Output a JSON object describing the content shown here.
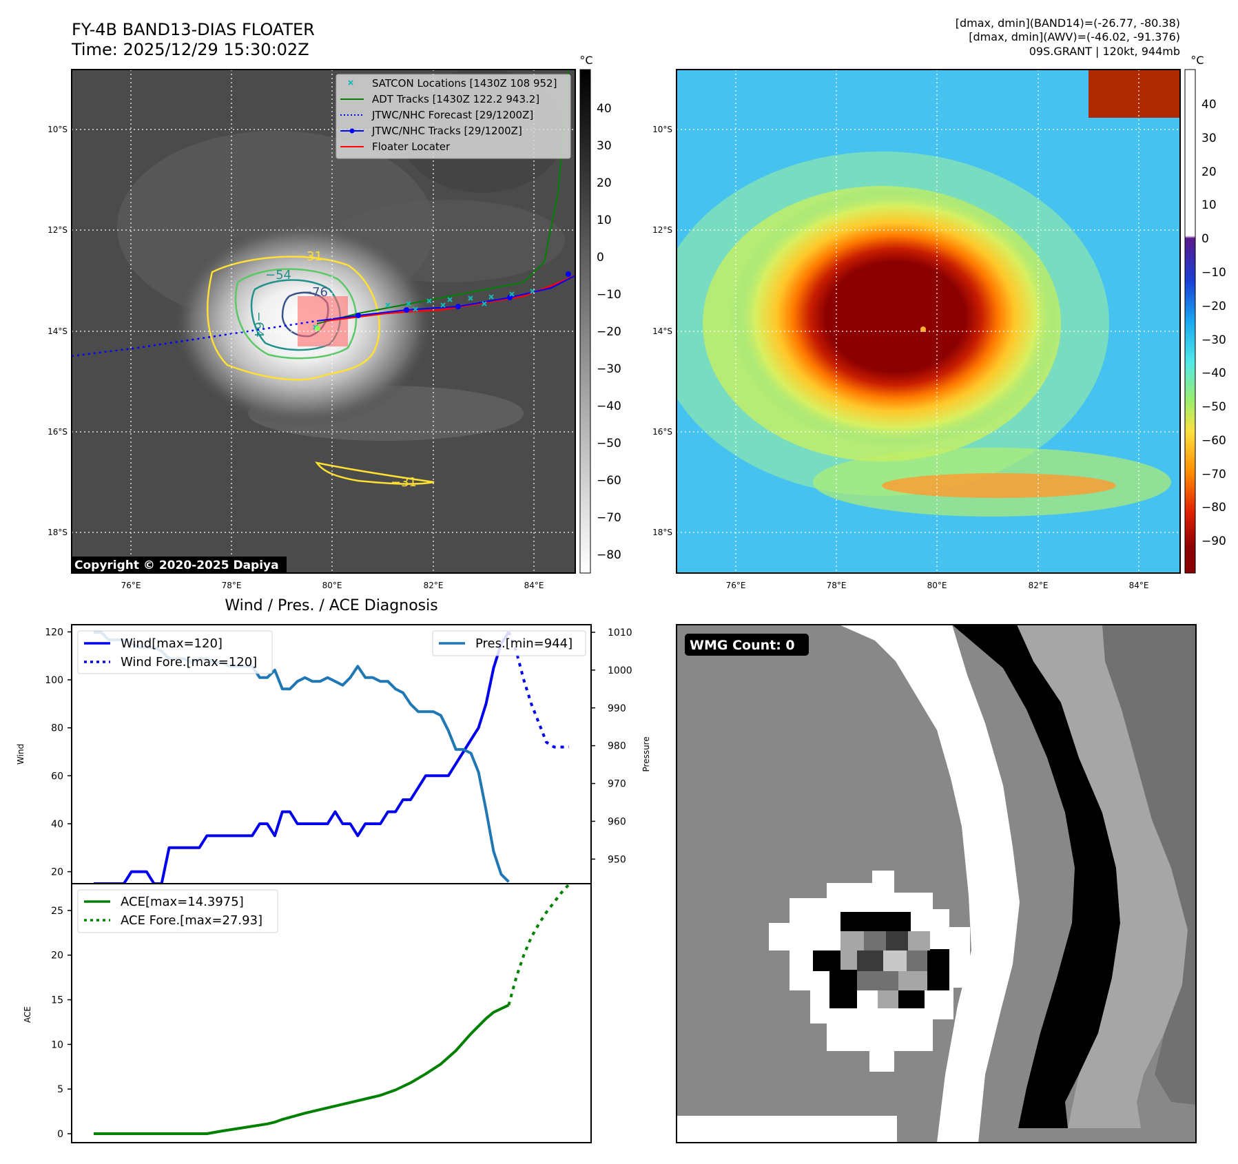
{
  "header": {
    "title": "FY-4B BAND13-DIAS FLOATER",
    "time": "Time: 2025/12/29 15:30:02Z",
    "info_line1": "[dmax, dmin](BAND14)=(-26.77, -80.38)",
    "info_line2": "[dmax, dmin](AWV)=(-46.02, -91.376)",
    "info_line3": "09S.GRANT | 120kt, 944mb"
  },
  "map": {
    "lon_ticks": [
      "76°E",
      "78°E",
      "80°E",
      "82°E",
      "84°E"
    ],
    "lat_ticks": [
      "10°S",
      "12°S",
      "14°S",
      "16°S",
      "18°S"
    ],
    "copyright": "Copyright © 2020-2025 Dapiya",
    "contour_labels": [
      "−31",
      "−54",
      "−76",
      "−64",
      "−31"
    ],
    "legend": [
      {
        "label": "SATCON Locations [1430Z 108 952]",
        "color": "#18b8b8",
        "style": "x"
      },
      {
        "label": "ADT Tracks [1430Z 122.2 943.2]",
        "color": "#008000",
        "style": "line"
      },
      {
        "label": "JTWC/NHC Forecast [29/1200Z]",
        "color": "#0000ff",
        "style": "dotted"
      },
      {
        "label": "JTWC/NHC Tracks [29/1200Z]",
        "color": "#0000ff",
        "style": "marker"
      },
      {
        "label": "Floater Locater",
        "color": "#ff0000",
        "style": "line"
      }
    ]
  },
  "colorbar_gray": {
    "unit": "°C",
    "ticks": [
      "40",
      "30",
      "20",
      "10",
      "0",
      "−10",
      "−20",
      "−30",
      "−40",
      "−50",
      "−60",
      "−70",
      "−80"
    ]
  },
  "colorbar_color": {
    "unit": "°C",
    "ticks": [
      "40",
      "30",
      "20",
      "10",
      "0",
      "−10",
      "−20",
      "−30",
      "−40",
      "−50",
      "−60",
      "−70",
      "−80",
      "−90"
    ]
  },
  "wmg": {
    "label": "WMG Count: 0"
  },
  "chart_data": [
    {
      "type": "line",
      "title": "Wind / Pres. / ACE Diagnosis",
      "ylabel": "Wind",
      "ylabel_right": "Pressure",
      "ylim": [
        15,
        123
      ],
      "ylim_right": [
        943.5,
        1012
      ],
      "xlim": [
        0,
        63
      ],
      "wind_ticks": [
        20,
        40,
        60,
        80,
        100,
        120
      ],
      "pres_ticks": [
        950,
        960,
        970,
        980,
        990,
        1000,
        1010
      ],
      "legend_wind": "Wind[max=120]",
      "legend_wind_fore": "Wind Fore.[max=120]",
      "legend_pres": "Pres.[min=944]",
      "series": [
        {
          "name": "Wind",
          "color": "#0000ee",
          "style": "solid",
          "axis": "left",
          "x": [
            0,
            1,
            2,
            3,
            4,
            5,
            6,
            7,
            8,
            9,
            10,
            11,
            12,
            13,
            14,
            15,
            16,
            17,
            18,
            19,
            20,
            21,
            22,
            23,
            24,
            25,
            26,
            27,
            28,
            29,
            30,
            31,
            32,
            33,
            34,
            35,
            36,
            37,
            38,
            39,
            40,
            41,
            42,
            43,
            44,
            45,
            46,
            47,
            48,
            49,
            50,
            51,
            52,
            53,
            54,
            55
          ],
          "values": [
            15,
            15,
            15,
            15,
            15,
            20,
            20,
            20,
            15,
            15,
            30,
            30,
            30,
            30,
            30,
            35,
            35,
            35,
            35,
            35,
            35,
            35,
            40,
            40,
            35,
            45,
            45,
            40,
            40,
            40,
            40,
            40,
            45,
            40,
            40,
            35,
            40,
            40,
            40,
            45,
            45,
            50,
            50,
            55,
            60,
            60,
            60,
            60,
            65,
            70,
            75,
            80,
            90,
            105,
            115,
            120
          ]
        },
        {
          "name": "Wind Fore.",
          "color": "#0000ee",
          "style": "dotted",
          "axis": "left",
          "x": [
            55,
            56,
            57,
            58,
            59,
            60,
            61,
            62,
            63
          ],
          "values": [
            120,
            112,
            100,
            90,
            82,
            74,
            72,
            72,
            72
          ]
        },
        {
          "name": "Pres.",
          "color": "#1f77b4",
          "style": "solid",
          "axis": "right",
          "x": [
            0,
            1,
            2,
            3,
            4,
            5,
            6,
            7,
            8,
            9,
            10,
            11,
            12,
            13,
            14,
            15,
            16,
            17,
            18,
            19,
            20,
            21,
            22,
            23,
            24,
            25,
            26,
            27,
            28,
            29,
            30,
            31,
            32,
            33,
            34,
            35,
            36,
            37,
            38,
            39,
            40,
            41,
            42,
            43,
            44,
            45,
            46,
            47,
            48,
            49,
            50,
            51,
            52,
            53,
            54,
            55
          ],
          "values": [
            1010,
            1010,
            1008,
            1008,
            1008,
            1007,
            1006,
            1006,
            1006,
            1005,
            1003,
            1003,
            1003,
            1002,
            1003,
            1003,
            1002,
            1002,
            1001,
            1001,
            1001,
            1001,
            998,
            998,
            1000,
            995,
            995,
            997,
            998,
            997,
            997,
            998,
            997,
            996,
            998,
            1001,
            998,
            998,
            997,
            997,
            995,
            994,
            991,
            989,
            989,
            989,
            988,
            984,
            979,
            979,
            978,
            973,
            963,
            952,
            946,
            944
          ]
        }
      ]
    },
    {
      "type": "line",
      "ylabel": "ACE",
      "ylim": [
        -1,
        28
      ],
      "xlim": [
        0,
        63
      ],
      "ace_ticks": [
        0,
        5,
        10,
        15,
        20,
        25
      ],
      "legend_ace": "ACE[max=14.3975]",
      "legend_ace_fore": "ACE Fore.[max=27.93]",
      "series": [
        {
          "name": "ACE",
          "color": "#008000",
          "style": "solid",
          "x": [
            0,
            15,
            17,
            20,
            23,
            24,
            25,
            28,
            31,
            34,
            36,
            38,
            40,
            42,
            44,
            46,
            48,
            50,
            52,
            53,
            54,
            55
          ],
          "values": [
            0,
            0,
            0.3,
            0.7,
            1.1,
            1.3,
            1.6,
            2.3,
            2.9,
            3.5,
            3.9,
            4.3,
            4.9,
            5.7,
            6.7,
            7.8,
            9.3,
            11.2,
            12.9,
            13.6,
            14.0,
            14.4
          ]
        },
        {
          "name": "ACE Fore.",
          "color": "#008000",
          "style": "dotted",
          "x": [
            55,
            56,
            57,
            58,
            59,
            60,
            61,
            62,
            63
          ],
          "values": [
            14.4,
            17.5,
            20.0,
            22.0,
            23.5,
            24.8,
            25.9,
            27.0,
            27.93
          ]
        }
      ]
    }
  ]
}
